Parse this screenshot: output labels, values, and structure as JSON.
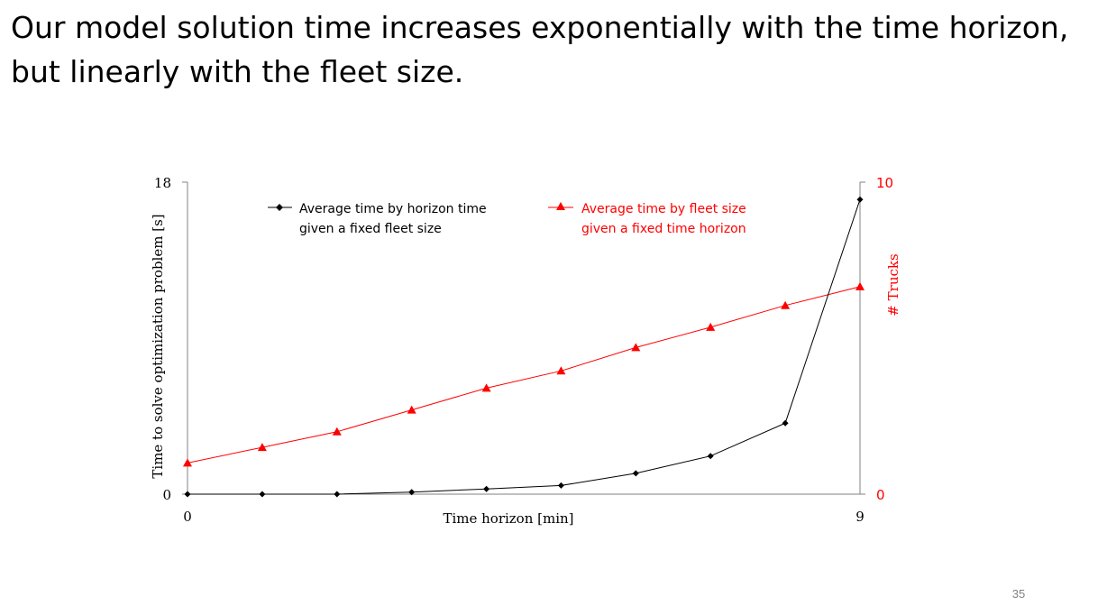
{
  "slide": {
    "title_lines": [
      "Our model solution time increases exponentially with the time horizon,",
      "but linearly with the fleet size."
    ],
    "page_number": "35"
  },
  "colors": {
    "series_black": "#000000",
    "series_red": "#ff0000",
    "axis": "#808080"
  },
  "chart_data": {
    "type": "line",
    "title": "",
    "xlabel": "Time horizon [min]",
    "ylabel": "Time to solve optimization problem [s]",
    "y2label": "# Trucks",
    "x_ticks": [
      "0",
      "9"
    ],
    "y_ticks": [
      "0",
      "18"
    ],
    "y2_ticks": [
      "0",
      "10"
    ],
    "xlim": [
      0,
      9
    ],
    "ylim": [
      0,
      18
    ],
    "y2lim": [
      0,
      10
    ],
    "grid": false,
    "legend_position": "top",
    "x": [
      0,
      1,
      2,
      3,
      4,
      5,
      6,
      7,
      8,
      9
    ],
    "series": [
      {
        "name": "Average time by horizon time given a fixed fleet size",
        "legend_lines": [
          "Average time by horizon time",
          "given a fixed fleet size"
        ],
        "axis": "left",
        "marker": "diamond",
        "color": "#000000",
        "values": [
          0,
          0,
          0,
          0.12,
          0.3,
          0.5,
          1.2,
          2.2,
          4.1,
          17.0
        ]
      },
      {
        "name": "Average time by fleet size given a fixed time horizon",
        "legend_lines": [
          "Average time by fleet size",
          "given a fixed time horizon"
        ],
        "axis": "right",
        "marker": "triangle",
        "color": "#ff0000",
        "values": [
          1.0,
          1.5,
          2.0,
          2.7,
          3.4,
          3.95,
          4.7,
          5.35,
          6.05,
          6.65
        ]
      }
    ]
  }
}
